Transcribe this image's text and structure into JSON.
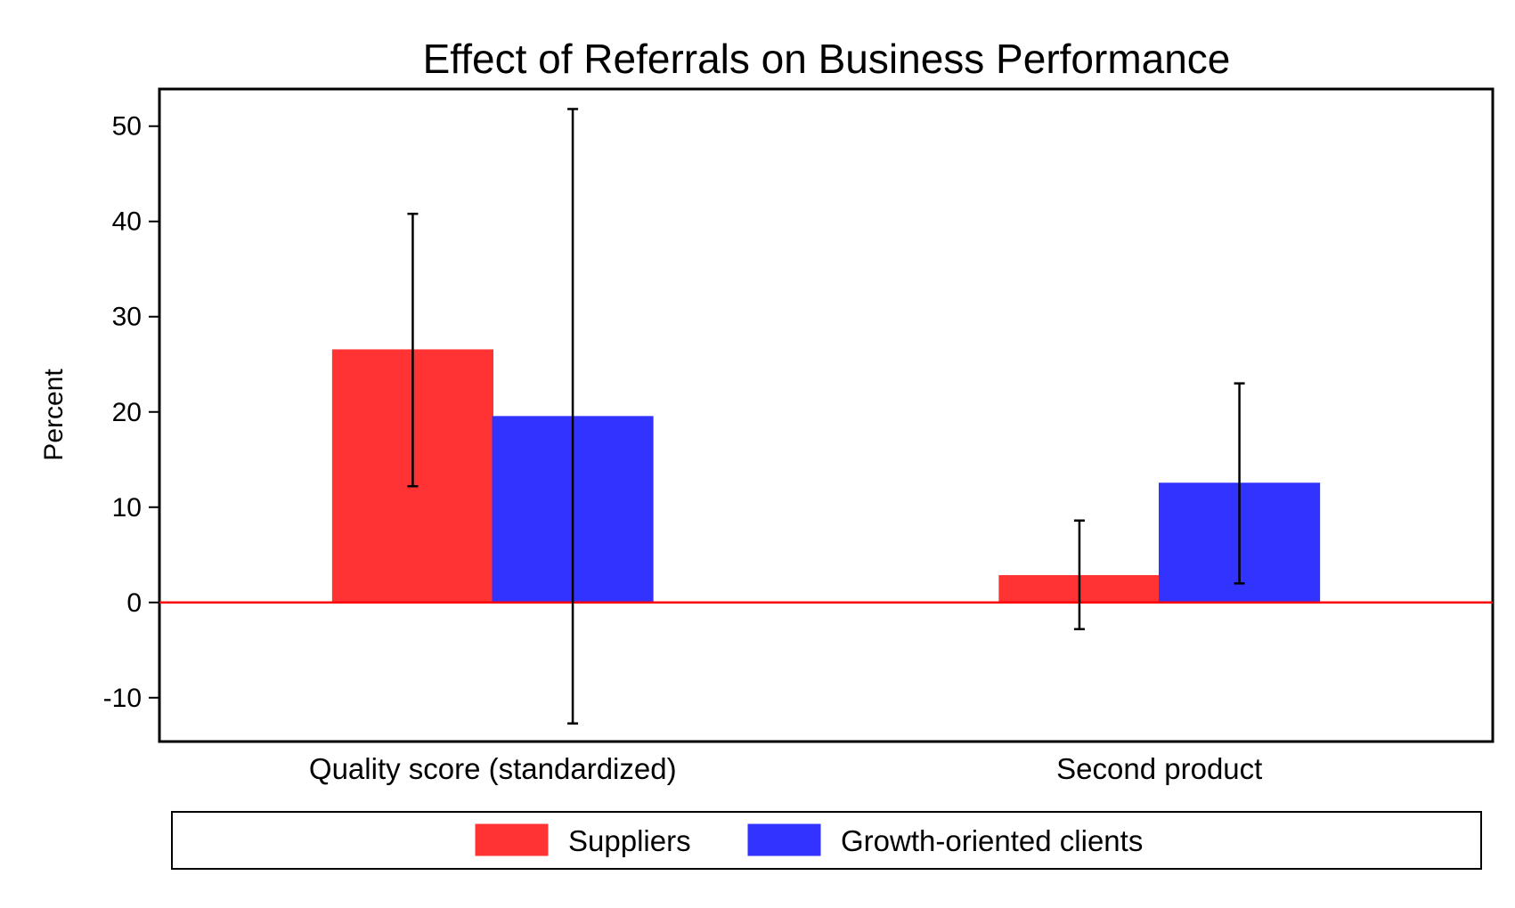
{
  "chart_data": {
    "type": "bar",
    "title": "Effect of Referrals on Business Performance",
    "xlabel": "",
    "ylabel": "Percent",
    "ylim": [
      -14.6,
      53.9
    ],
    "yticks": [
      -10,
      0,
      10,
      20,
      30,
      40,
      50
    ],
    "categories": [
      "Quality score (standardized)",
      "Second product"
    ],
    "series": [
      {
        "name": "Suppliers",
        "color": "#ff3333",
        "values": [
          26.5,
          2.8
        ],
        "ci_low": [
          12.2,
          -2.8
        ],
        "ci_high": [
          40.8,
          8.6
        ]
      },
      {
        "name": "Growth-oriented clients",
        "color": "#3333ff",
        "values": [
          19.5,
          12.5
        ],
        "ci_low": [
          -12.7,
          2.0
        ],
        "ci_high": [
          51.8,
          23.0
        ]
      }
    ],
    "zero_line_color": "#ff0000",
    "grid": false,
    "legend_position": "bottom"
  }
}
